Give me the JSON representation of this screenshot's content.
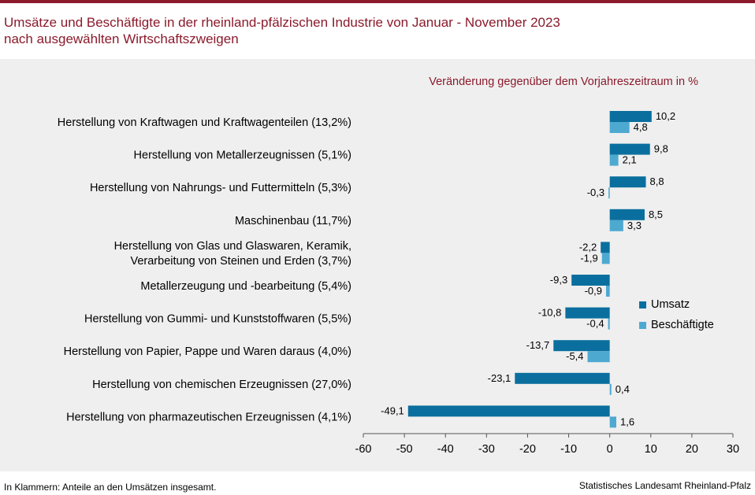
{
  "title": {
    "line1": "Umsätze und Beschäftigte in der rheinland-pfälzischen Industrie von Januar - November 2023",
    "line2": "nach ausgewählten Wirtschaftszweigen"
  },
  "colors": {
    "accent": "#8b1a2b",
    "umsatz": "#0a6f9e",
    "beschaeftigte": "#4ea9d1",
    "panel": "#efefef"
  },
  "footer": {
    "note": "In Klammern: Anteile an den Umsätzen insgesamt.",
    "source": "Statistisches Landesamt Rheinland-Pfalz"
  },
  "chart_data": {
    "type": "bar",
    "orientation": "horizontal",
    "subtitle": "Veränderung gegenüber dem Vorjahreszeitraum in %",
    "categories": [
      [
        "Herstellung von Kraftwagen und Kraftwagenteilen (13,2%)"
      ],
      [
        "Herstellung von Metallerzeugnissen (5,1%)"
      ],
      [
        "Herstellung von Nahrungs- und Futtermitteln (5,3%)"
      ],
      [
        "Maschinenbau (11,7%)"
      ],
      [
        "Herstellung von Glas und Glaswaren, Keramik,",
        "Verarbeitung von Steinen und Erden (3,7%)"
      ],
      [
        "Metallerzeugung und -bearbeitung (5,4%)"
      ],
      [
        "Herstellung von Gummi- und Kunststoffwaren (5,5%)"
      ],
      [
        "Herstellung von Papier, Pappe und Waren daraus (4,0%)"
      ],
      [
        "Herstellung von chemischen Erzeugnissen (27,0%)"
      ],
      [
        "Herstellung von pharmazeutischen Erzeugnissen (4,1%)"
      ]
    ],
    "series": [
      {
        "name": "Umsatz",
        "values": [
          10.2,
          9.8,
          8.8,
          8.5,
          -2.2,
          -9.3,
          -10.8,
          -13.7,
          -23.1,
          -49.1
        ],
        "labels": [
          "10,2",
          "9,8",
          "8,8",
          "8,5",
          "-2,2",
          "-9,3",
          "-10,8",
          "-13,7",
          "-23,1",
          "-49,1"
        ]
      },
      {
        "name": "Beschäftigte",
        "values": [
          4.8,
          2.1,
          -0.3,
          3.3,
          -1.9,
          -0.9,
          -0.4,
          -5.4,
          0.4,
          1.6
        ],
        "labels": [
          "4,8",
          "2,1",
          "-0,3",
          "3,3",
          "-1,9",
          "-0,9",
          "-0,4",
          "-5,4",
          "0,4",
          "1,6"
        ]
      }
    ],
    "xlim": [
      -60,
      30
    ],
    "xticks": [
      -60,
      -50,
      -40,
      -30,
      -20,
      -10,
      0,
      10,
      20,
      30
    ],
    "legend": "right"
  }
}
